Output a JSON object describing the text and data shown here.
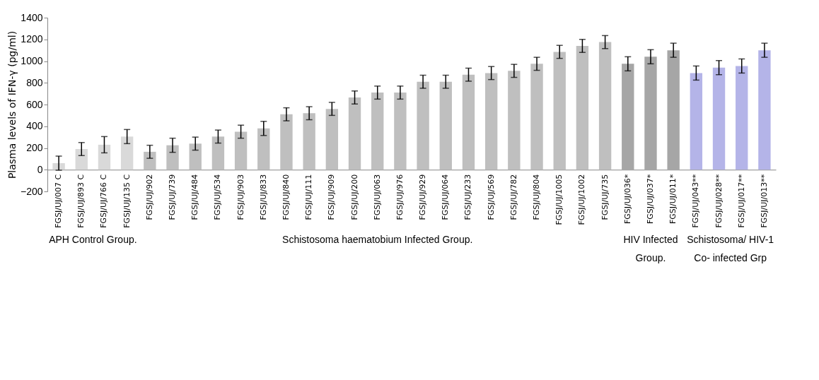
{
  "chart_data": {
    "type": "bar",
    "ylabel": "Plasma  levels of  IFN-γ (pg/ml)",
    "categories": [
      "FGSJ/UJ/007 C",
      "FGSJ/UJ/893 C",
      "FGSJ/UJ/766 C",
      "FGSJ/UJ/135 C",
      "FGSJ/UJ/902",
      "FGSJ/UJ/739",
      "FGSJ/UJ/484",
      "FGSJ/UJ/534",
      "FGSJ/UJ/903",
      "FGSJ/UJ/833",
      "FGSJ/UJ/840",
      "FGSJ/UJ/111",
      "FGSJ/UJ/909",
      "FGSJ/UJ/200",
      "FGSJ/UJ/063",
      "FGSJ/UJ/976",
      "FGSJ/UJ/929",
      "FGSJ/UJ/064",
      "FGSJ/UJ/233",
      "FGSJ/UJ/569",
      "FGSJ/UJ/782",
      "FGSJ/UJ/804",
      "FGSJ/UJ/1005",
      "FGSJ/UJ/1002",
      "FGSJ/UJ/735",
      "FGSJ/UJ/036*",
      "FGSJ/UJ/037*",
      "FGSJ/UJ/011*",
      "FGSJ/UJ/043**",
      "FGSJ/UJ/028**",
      "FGSJ/UJ/017**",
      "FGSJ/UJ/013**"
    ],
    "series": [
      {
        "color": "#d9d9d9",
        "values": [
          60,
          190,
          230,
          305,
          null,
          null,
          null,
          null,
          null,
          null,
          null,
          null,
          null,
          null,
          null,
          null,
          null,
          null,
          null,
          null,
          null,
          null,
          null,
          null,
          null,
          null,
          null,
          null,
          null,
          null,
          null,
          null
        ],
        "errors": [
          65,
          60,
          75,
          65,
          null,
          null,
          null,
          null,
          null,
          null,
          null,
          null,
          null,
          null,
          null,
          null,
          null,
          null,
          null,
          null,
          null,
          null,
          null,
          null,
          null,
          null,
          null,
          null,
          null,
          null,
          null,
          null
        ]
      },
      {
        "color": "#bfbfbf",
        "values": [
          null,
          null,
          null,
          null,
          165,
          225,
          240,
          305,
          350,
          380,
          510,
          520,
          560,
          665,
          710,
          710,
          810,
          810,
          875,
          890,
          910,
          975,
          1085,
          1140,
          1175,
          null,
          null,
          null,
          null,
          null,
          null,
          null
        ],
        "errors": [
          null,
          null,
          null,
          null,
          60,
          65,
          60,
          60,
          60,
          65,
          60,
          60,
          60,
          60,
          60,
          60,
          60,
          60,
          60,
          60,
          60,
          60,
          60,
          60,
          60,
          null,
          null,
          null,
          null,
          null,
          null,
          null
        ]
      },
      {
        "color": "#a6a6a6",
        "values": [
          null,
          null,
          null,
          null,
          null,
          null,
          null,
          null,
          null,
          null,
          null,
          null,
          null,
          null,
          null,
          null,
          null,
          null,
          null,
          null,
          null,
          null,
          null,
          null,
          null,
          975,
          1040,
          1100,
          null,
          null,
          null,
          null
        ],
        "errors": [
          null,
          null,
          null,
          null,
          null,
          null,
          null,
          null,
          null,
          null,
          null,
          null,
          null,
          null,
          null,
          null,
          null,
          null,
          null,
          null,
          null,
          null,
          null,
          null,
          null,
          65,
          65,
          65,
          null,
          null,
          null,
          null
        ]
      },
      {
        "color": "#b4b4e8",
        "values": [
          null,
          null,
          null,
          null,
          null,
          null,
          null,
          null,
          null,
          null,
          null,
          null,
          null,
          null,
          null,
          null,
          null,
          null,
          null,
          null,
          null,
          null,
          null,
          null,
          null,
          null,
          null,
          null,
          890,
          940,
          955,
          1100
        ],
        "errors": [
          null,
          null,
          null,
          null,
          null,
          null,
          null,
          null,
          null,
          null,
          null,
          null,
          null,
          null,
          null,
          null,
          null,
          null,
          null,
          null,
          null,
          null,
          null,
          null,
          null,
          null,
          null,
          null,
          65,
          65,
          65,
          65
        ]
      }
    ],
    "annotations": [
      "APH Control Group.",
      "Schistosoma haematobium Infected Group.",
      "HIV Infected Group.",
      "Schistosoma/ HIV-1 Co- infected Grp"
    ],
    "ylim": [
      -200,
      1400
    ],
    "yticks": [
      -200,
      0,
      200,
      400,
      600,
      800,
      1000,
      1200,
      1400
    ]
  }
}
